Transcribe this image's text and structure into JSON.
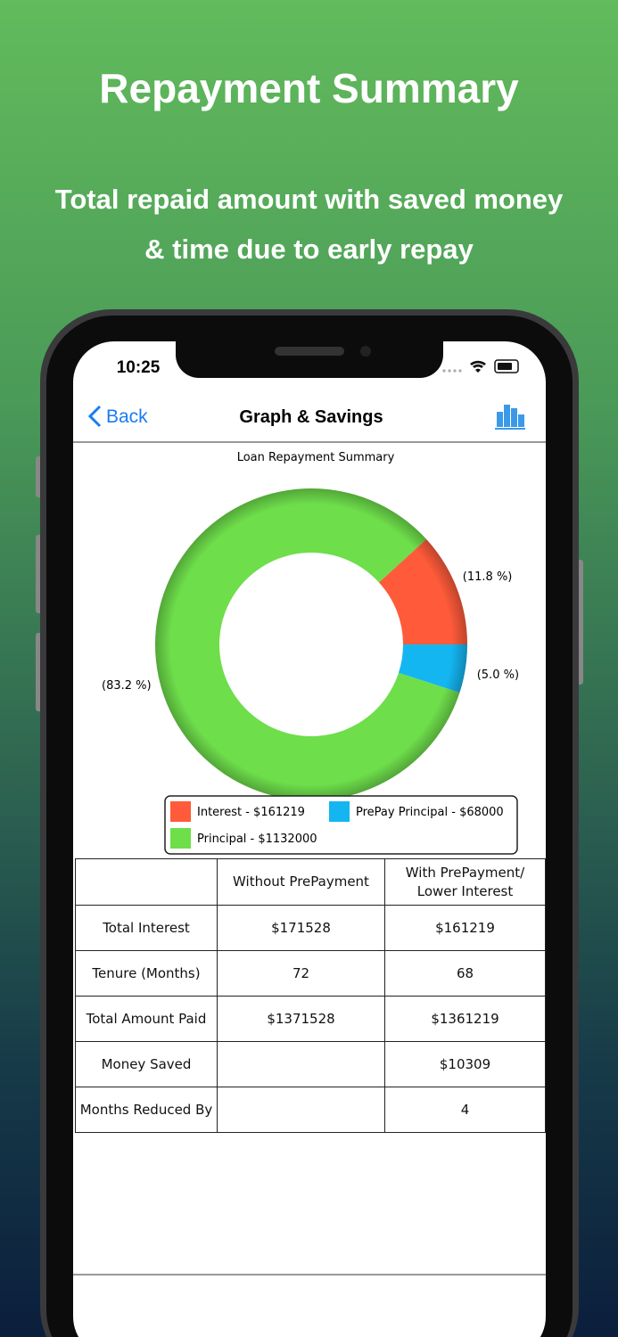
{
  "header": {
    "title": "Repayment Summary",
    "subtitle": "Total repaid amount with saved money\n& time due to early repay"
  },
  "status_bar": {
    "time": "10:25"
  },
  "nav": {
    "back": "Back",
    "title": "Graph & Savings"
  },
  "chart_data": {
    "type": "donut",
    "title": "Loan Repayment Summary",
    "categories": [
      "Interest - $161219",
      "PrePay Principal - $68000",
      "Principal - $1132000"
    ],
    "values": [
      11.8,
      5.0,
      83.2
    ],
    "value_labels": [
      "(11.8 %)",
      "(5.0 %)",
      "(83.2 %)"
    ],
    "colors": [
      "#ff5b3a",
      "#14b6f2",
      "#6ede4b"
    ]
  },
  "table": {
    "columns": [
      "Without PrePayment",
      "With PrePayment/\nLower Interest"
    ],
    "rows": [
      {
        "label": "Total Interest",
        "without": "$171528",
        "with": "$161219"
      },
      {
        "label": "Tenure (Months)",
        "without": "72",
        "with": "68"
      },
      {
        "label": "Total Amount Paid",
        "without": "$1371528",
        "with": "$1361219"
      },
      {
        "label": "Money Saved",
        "with": "$10309"
      },
      {
        "label": "Months Reduced By",
        "with": "4"
      }
    ]
  }
}
